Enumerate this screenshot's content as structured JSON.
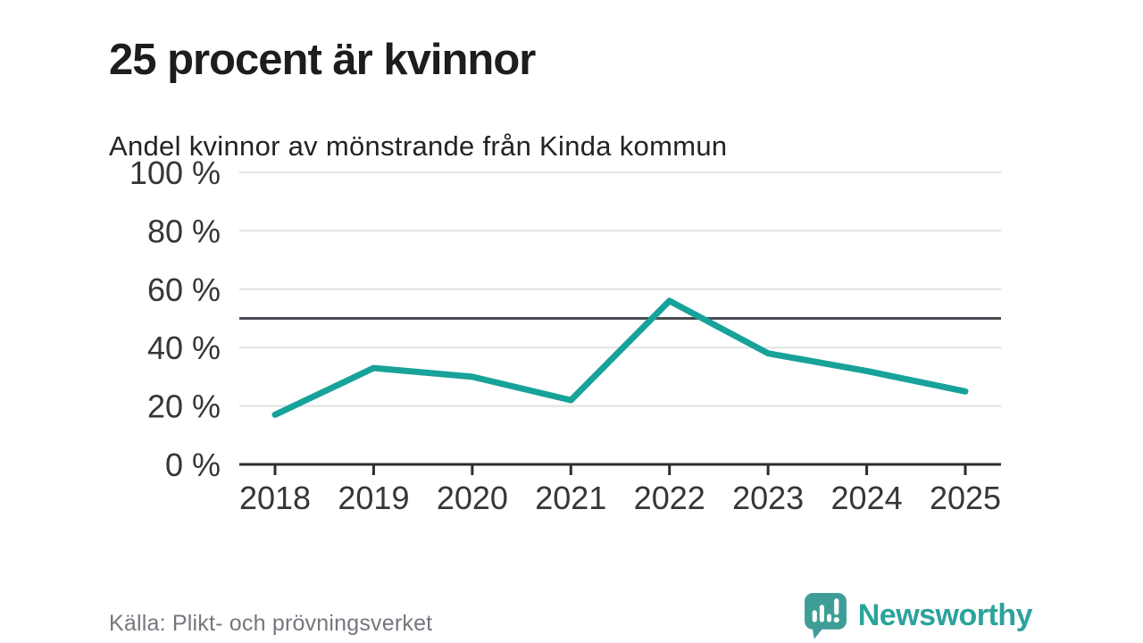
{
  "header": {
    "title": "25 procent är kvinnor",
    "subtitle": "Andel kvinnor av mönstrande från Kinda kommun"
  },
  "chart_data": {
    "type": "line",
    "title": "Andel kvinnor av mönstrande från Kinda kommun",
    "x": [
      "2018",
      "2019",
      "2020",
      "2021",
      "2022",
      "2023",
      "2024",
      "2025"
    ],
    "series": [
      {
        "name": "Andel kvinnor av mönstrande",
        "values": [
          17,
          33,
          30,
          22,
          56,
          38,
          32,
          25
        ],
        "color": "#17a29a"
      }
    ],
    "unit": "%",
    "ylim": [
      0,
      100
    ],
    "yticks": [
      0,
      20,
      40,
      60,
      80,
      100
    ],
    "ytick_suffix": " %",
    "reference_line": 50,
    "grid": "horizontal",
    "legend": "none"
  },
  "footer": {
    "source": "Källa: Plikt- och prövningsverket",
    "brand": "Newsworthy"
  },
  "icons": {
    "logo_mark": "bar-chart-exclamation-speech-bubble"
  },
  "colors": {
    "background": "#ffffff",
    "title": "#1d1d1b",
    "subtitle": "#232323",
    "tick_label": "#363636",
    "grid": "#e2e2e2",
    "axis": "#2d2d2d",
    "reference_line": "#4a4a52",
    "line": "#17a29a",
    "source_text": "#76767e",
    "brand_teal": "#2aa39b",
    "brand_mark_teal": "#3e9e97"
  }
}
